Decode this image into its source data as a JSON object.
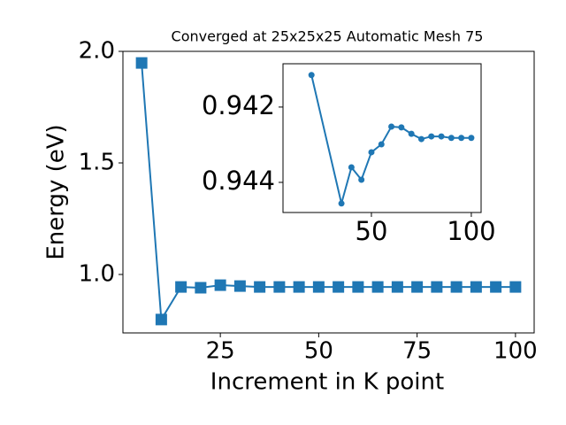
{
  "chart_data": [
    {
      "type": "line",
      "title": "Converged at 25x25x25 Automatic Mesh 75",
      "x_label": "Increment in K point",
      "y_label": "Energy (eV)",
      "x": [
        5,
        10,
        15,
        20,
        25,
        30,
        35,
        40,
        45,
        50,
        55,
        60,
        65,
        70,
        75,
        80,
        85,
        90,
        95,
        100
      ],
      "series": [
        {
          "name": "Energy",
          "color": "#1f77b4",
          "marker": "square",
          "values": [
            1.948,
            0.798,
            0.944,
            0.9405,
            0.952,
            0.948,
            0.944,
            0.944,
            0.944,
            0.944,
            0.944,
            0.944,
            0.944,
            0.944,
            0.944,
            0.944,
            0.944,
            0.944,
            0.944,
            0.944
          ]
        }
      ],
      "xlim": [
        0.25,
        104.75
      ],
      "xticks": [
        25,
        50,
        75,
        100
      ],
      "ylim": [
        0.738,
        2.0
      ],
      "yticks": [
        {
          "value": 1.0,
          "label": "1.0"
        },
        1.5,
        {
          "value": 2.0,
          "label": "2.0"
        }
      ]
    },
    {
      "type": "line",
      "x": [
        20,
        35,
        40,
        45,
        50,
        55,
        60,
        65,
        70,
        75,
        80,
        85,
        90,
        95,
        100
      ],
      "series": [
        {
          "name": "Energy",
          "color": "#1f77b4",
          "marker": "circle",
          "values": [
            0.94115,
            0.94456,
            0.9436,
            0.94393,
            0.9432,
            0.94299,
            0.94252,
            0.94254,
            0.94271,
            0.94285,
            0.94278,
            0.94278,
            0.94282,
            0.94282,
            0.94282
          ]
        }
      ],
      "xlim": [
        5.75,
        104.9
      ],
      "xticks": [
        50,
        100
      ],
      "ylim": [
        0.9448,
        0.94085
      ],
      "yticks": [
        0.942,
        0.944
      ]
    }
  ]
}
